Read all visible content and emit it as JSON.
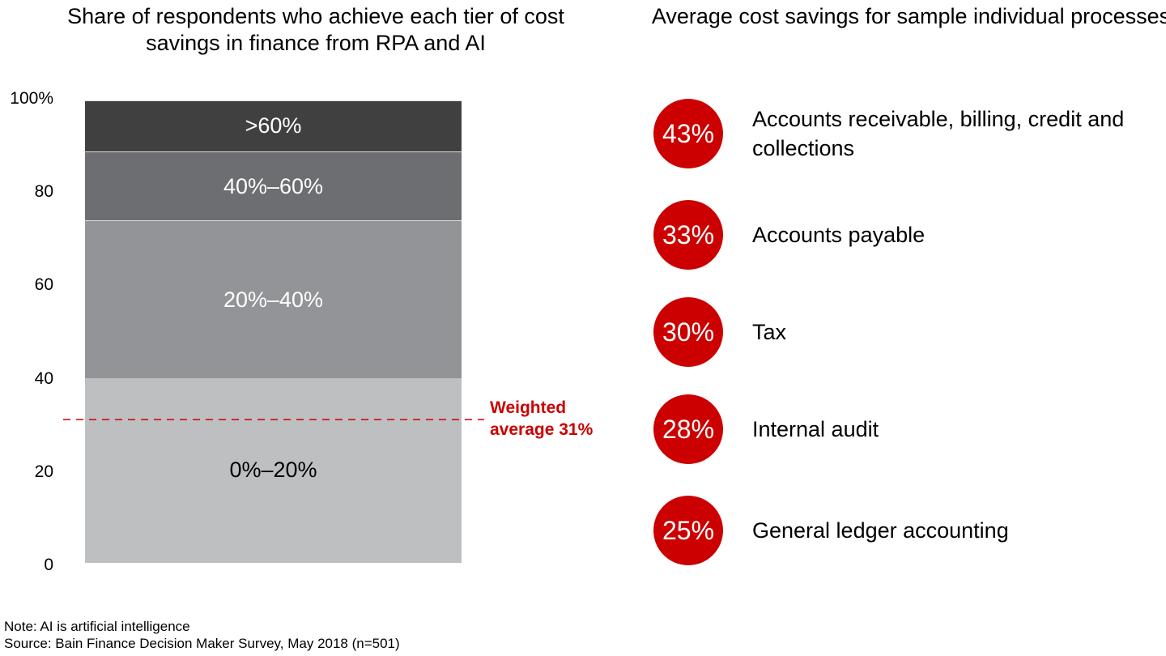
{
  "chart_data": [
    {
      "type": "bar",
      "stacked": true,
      "title": "Share of respondents who achieve each tier of cost savings in finance from RPA and AI",
      "ylim": [
        0,
        100
      ],
      "yticks": [
        "0",
        "20",
        "40",
        "60",
        "80",
        "100%"
      ],
      "ytick_values": [
        0,
        20,
        40,
        60,
        80,
        100
      ],
      "series": [
        {
          "name": "0%–20%",
          "value": 40,
          "color": "#bebfc1",
          "text_color": "#000000"
        },
        {
          "name": "20%–40%",
          "value": 34,
          "color": "#939498",
          "text_color": "#ffffff"
        },
        {
          "name": "40%–60%",
          "value": 15,
          "color": "#6d6e72",
          "text_color": "#ffffff"
        },
        {
          "name": ">60%",
          "value": 11,
          "color": "#404040",
          "text_color": "#ffffff"
        }
      ],
      "reference_line": {
        "value": 31,
        "label_line1": "Weighted",
        "label_line2": "average 31%",
        "color": "#cc0000",
        "style": "dashed"
      }
    },
    {
      "type": "table",
      "title": "Average cost savings for sample individual processes",
      "accent_color": "#cc0000",
      "rows": [
        {
          "value": "43%",
          "label": "Accounts receivable, billing, credit and collections"
        },
        {
          "value": "33%",
          "label": "Accounts payable"
        },
        {
          "value": "30%",
          "label": "Tax"
        },
        {
          "value": "28%",
          "label": "Internal audit"
        },
        {
          "value": "25%",
          "label": "General ledger accounting"
        }
      ]
    }
  ],
  "footer": {
    "note": "Note: AI is artificial intelligence",
    "source": "Source: Bain Finance Decision Maker Survey, May 2018 (n=501)"
  }
}
